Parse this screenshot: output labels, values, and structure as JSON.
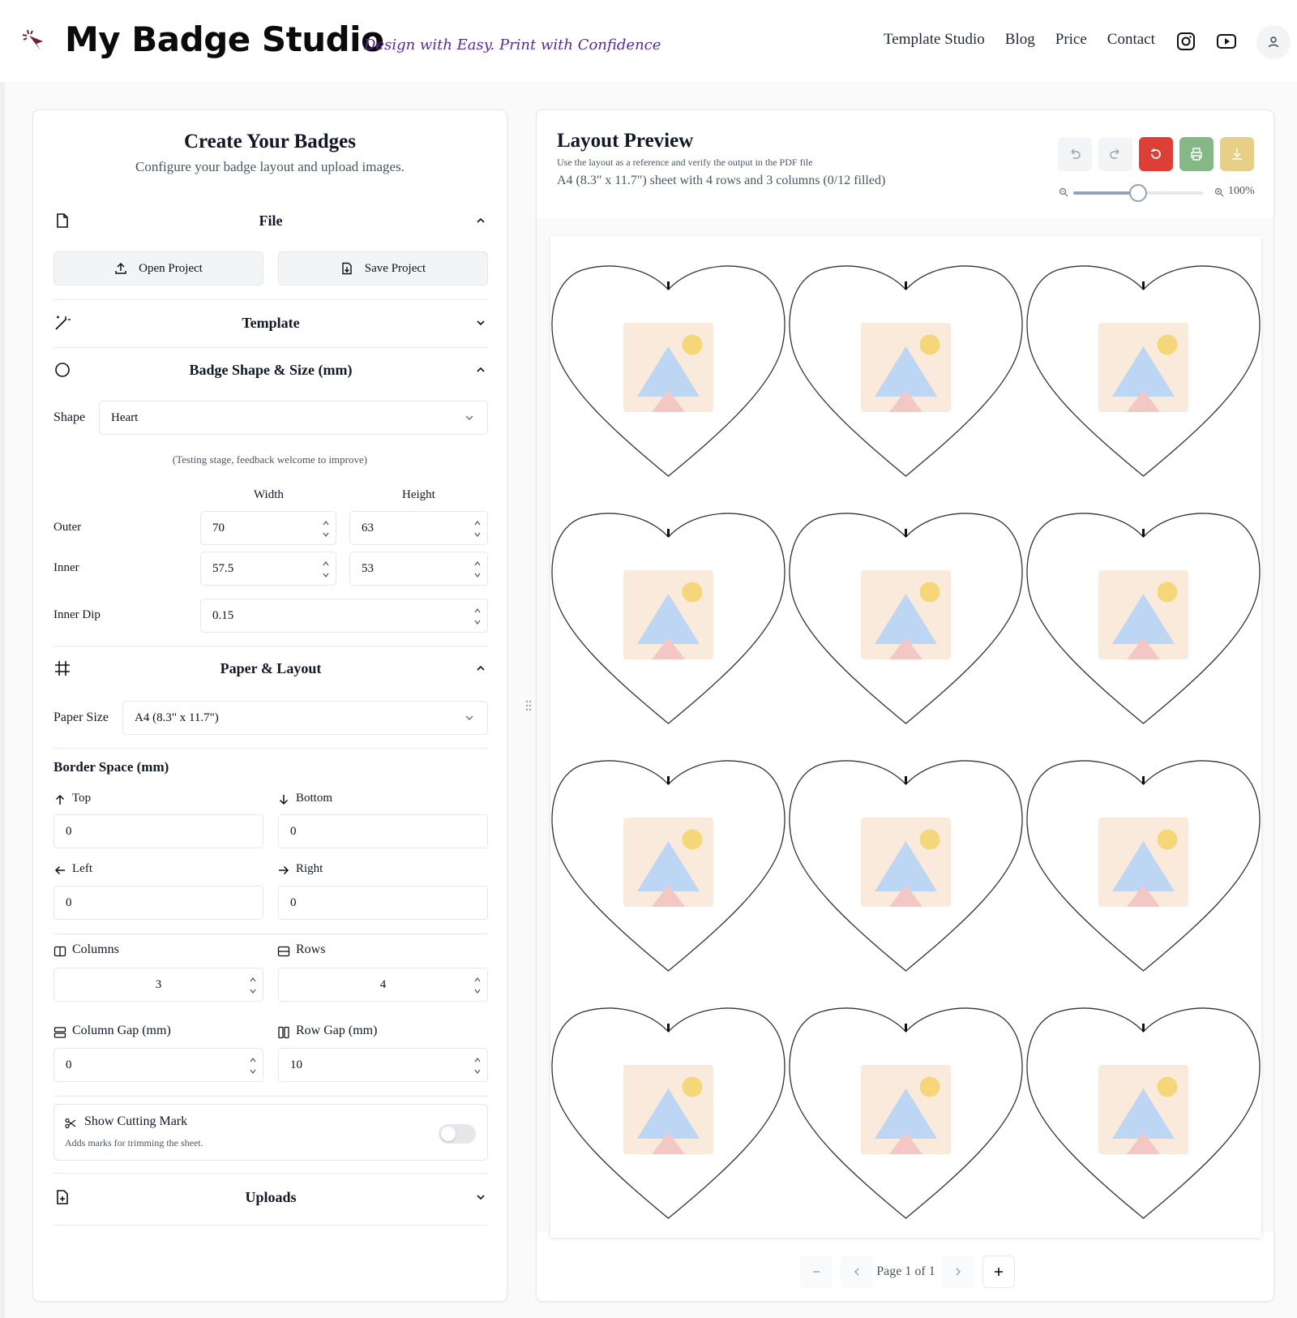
{
  "header": {
    "brand": "My Badge Studio",
    "tagline": "Design with Easy. Print with Confidence",
    "nav": [
      "Template Studio",
      "Blog",
      "Price",
      "Contact"
    ],
    "icons": [
      "instagram-icon",
      "youtube-icon",
      "user-icon"
    ]
  },
  "left_panel": {
    "title": "Create Your Badges",
    "subtitle": "Configure your badge layout and upload images.",
    "sections": {
      "file": "File",
      "template": "Template",
      "badge_shape": "Badge Shape & Size (mm)",
      "paper_layout": "Paper & Layout",
      "uploads": "Uploads"
    },
    "file": {
      "open_label": "Open Project",
      "save_label": "Save Project"
    },
    "shape": {
      "label": "Shape",
      "value": "Heart",
      "note": "(Testing stage, feedback welcome to improve)",
      "col_width": "Width",
      "col_height": "Height",
      "outer_label": "Outer",
      "outer_width": "70",
      "outer_height": "63",
      "inner_label": "Inner",
      "inner_width": "57.5",
      "inner_height": "53",
      "inner_dip_label": "Inner Dip",
      "inner_dip": "0.15"
    },
    "paper": {
      "size_label": "Paper Size",
      "size_value": "A4 (8.3\" x 11.7\")",
      "border_title": "Border Space (mm)",
      "top_label": "Top",
      "top": "0",
      "bottom_label": "Bottom",
      "bottom": "0",
      "left_label": "Left",
      "left": "0",
      "right_label": "Right",
      "right": "0",
      "columns_label": "Columns",
      "columns": "3",
      "rows_label": "Rows",
      "rows": "4",
      "col_gap_label": "Column Gap (mm)",
      "col_gap": "0",
      "row_gap_label": "Row Gap (mm)",
      "row_gap": "10",
      "cut_mark_label": "Show Cutting Mark",
      "cut_mark_desc": "Adds marks for trimming the sheet.",
      "cut_mark_on": false
    }
  },
  "preview": {
    "title": "Layout Preview",
    "hint": "Use the layout as a reference and verify the output in the PDF file",
    "summary": "A4 (8.3\" x 11.7\") sheet with 4 rows and 3 columns (0/12 filled)",
    "zoom": "100%",
    "zoom_level": 0.5,
    "toolbar_colors": {
      "reset": "#dc3f35",
      "print": "#86b787",
      "download": "#e7cf87"
    },
    "rows": 4,
    "cols": 3,
    "page_label": "Page 1 of 1"
  }
}
